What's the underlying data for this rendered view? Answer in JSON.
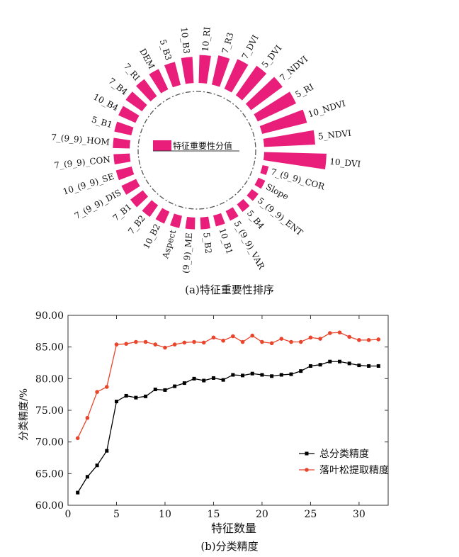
{
  "captions": {
    "a": "(a)特征重要性排序",
    "b": "(b)分类精度"
  },
  "chart_data": [
    {
      "type": "radial_bar",
      "legend_label": "特征重要性分值",
      "bar_color": "#e91e7a",
      "categories": [
        "10_DVI",
        "7_(9_9)_COR",
        "Slope",
        "5_(9_9)_ENT",
        "5_B4",
        "5_(9_9)_VAR",
        "10_B1",
        "5_B2",
        "5_(9_9)_ME",
        "Aspect",
        "10_B2",
        "7_B2",
        "7_B1",
        "7_(9_9)_DIS",
        "10_(9_9)_SE",
        "7_(9_9)_CON",
        "7_(9_9)_HOM",
        "5_B1",
        "10_B4",
        "7_B4",
        "7_RI",
        "DEM",
        "5_B3",
        "10_B3",
        "10_RI",
        "7_R3",
        "7_DVI",
        "5_DVI",
        "7_NDVI",
        "5_RI",
        "10_NDVI",
        "5_NDVI"
      ],
      "values": [
        10,
        1,
        1.2,
        1.3,
        1.5,
        1.7,
        1.8,
        1.9,
        1.9,
        2.0,
        2.1,
        2.3,
        2.5,
        2.6,
        2.6,
        2.6,
        2.7,
        2.8,
        3.0,
        3.2,
        3.4,
        3.6,
        3.8,
        4.2,
        4.5,
        4.8,
        5.2,
        5.8,
        6.3,
        6.8,
        7.4,
        8.2
      ]
    },
    {
      "type": "line",
      "xlabel": "特征数量",
      "ylabel": "分类精度/%",
      "xlim": [
        0,
        33
      ],
      "ylim": [
        60,
        90
      ],
      "xticks": [
        0,
        5,
        10,
        15,
        20,
        25,
        30
      ],
      "yticks": [
        "60.00",
        "65.00",
        "70.00",
        "75.00",
        "80.00",
        "85.00",
        "90.00"
      ],
      "legend_position": "lower-right",
      "x": [
        1,
        2,
        3,
        4,
        5,
        6,
        7,
        8,
        9,
        10,
        11,
        12,
        13,
        14,
        15,
        16,
        17,
        18,
        19,
        20,
        21,
        22,
        23,
        24,
        25,
        26,
        27,
        28,
        29,
        30,
        31,
        32
      ],
      "series": [
        {
          "name": "总分类精度",
          "color": "#000000",
          "marker": "square",
          "values": [
            62.0,
            64.5,
            66.3,
            68.6,
            76.4,
            77.3,
            77.0,
            77.2,
            78.3,
            78.2,
            78.8,
            79.3,
            80.0,
            79.7,
            80.1,
            79.8,
            80.6,
            80.5,
            80.8,
            80.6,
            80.4,
            80.6,
            80.7,
            81.2,
            82.0,
            82.2,
            82.7,
            82.7,
            82.4,
            82.1,
            82.0,
            82.0
          ]
        },
        {
          "name": "落叶松提取精度",
          "color": "#e8452c",
          "marker": "circle",
          "values": [
            70.6,
            73.8,
            77.9,
            78.7,
            85.4,
            85.5,
            85.8,
            85.8,
            85.4,
            84.9,
            85.4,
            85.7,
            85.8,
            85.7,
            86.5,
            86.0,
            86.7,
            85.8,
            86.8,
            85.8,
            85.6,
            86.3,
            85.8,
            85.8,
            86.5,
            86.3,
            87.2,
            87.3,
            86.6,
            86.1,
            86.1,
            86.2
          ]
        }
      ]
    }
  ]
}
